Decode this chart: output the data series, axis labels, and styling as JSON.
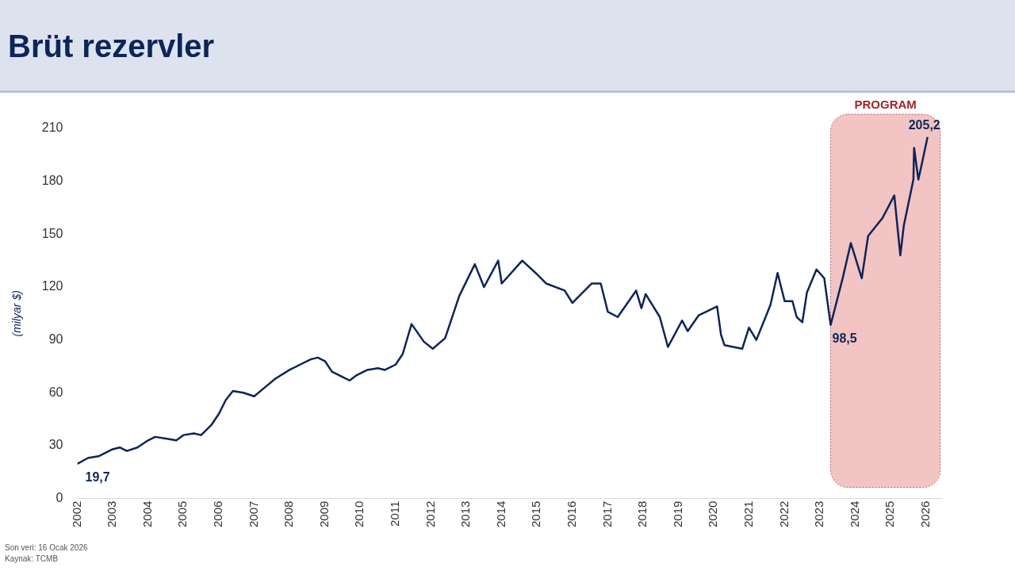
{
  "chart_data": {
    "type": "line",
    "title": "Brüt rezervler",
    "ylabel": "(milyar $)",
    "x": [
      2002.0,
      2002.3,
      2002.6,
      2003.0,
      2003.2,
      2003.4,
      2003.7,
      2004.0,
      2004.2,
      2004.5,
      2004.8,
      2005.0,
      2005.3,
      2005.5,
      2005.8,
      2006.0,
      2006.2,
      2006.4,
      2006.7,
      2007.0,
      2007.3,
      2007.6,
      2008.0,
      2008.3,
      2008.6,
      2008.8,
      2009.0,
      2009.2,
      2009.5,
      2009.7,
      2009.9,
      2010.2,
      2010.5,
      2010.7,
      2011.0,
      2011.2,
      2011.45,
      2011.8,
      2012.05,
      2012.4,
      2012.8,
      2013.24,
      2013.5,
      2013.9,
      2014.0,
      2014.58,
      2014.96,
      2015.26,
      2015.78,
      2016.0,
      2016.54,
      2016.8,
      2017.0,
      2017.28,
      2017.8,
      2017.95,
      2018.07,
      2018.47,
      2018.7,
      2019.1,
      2019.26,
      2019.57,
      2020.09,
      2020.2,
      2020.3,
      2020.8,
      2020.99,
      2021.2,
      2021.6,
      2021.8,
      2022.0,
      2022.22,
      2022.34,
      2022.5,
      2022.63,
      2022.9,
      2023.12,
      2023.3,
      2023.64,
      2023.87,
      2024.18,
      2024.36,
      2024.76,
      2025.1,
      2025.27,
      2025.37,
      2025.64,
      2025.66,
      2025.78,
      2025.89,
      2026.04
    ],
    "series": [
      {
        "color": "#0d2557",
        "values": [
          19.7,
          23,
          24,
          28,
          29,
          27,
          29,
          33,
          35,
          34,
          33,
          36,
          37,
          36,
          42,
          48,
          56,
          61,
          60,
          58,
          63,
          68,
          73,
          76,
          79,
          80,
          78,
          72,
          69,
          67,
          70,
          73,
          74,
          73,
          76,
          82,
          99,
          89,
          85,
          91,
          115,
          133,
          120,
          135,
          122,
          135,
          128,
          122,
          118,
          111,
          122,
          122,
          106,
          103,
          118,
          108,
          116,
          103,
          86,
          101,
          95,
          104,
          109,
          93,
          87,
          85,
          97,
          90,
          110,
          128,
          112,
          112,
          103,
          100,
          117,
          130,
          125,
          98.5,
          125,
          145,
          125,
          149,
          159,
          172,
          138,
          155,
          181,
          199,
          181,
          191,
          205.2
        ]
      }
    ],
    "xlim": [
      2002,
      2026.45
    ],
    "xticks": [
      2002,
      2003,
      2004,
      2005,
      2006,
      2007,
      2008,
      2009,
      2010,
      2011,
      2012,
      2013,
      2014,
      2015,
      2016,
      2017,
      2018,
      2019,
      2020,
      2021,
      2022,
      2023,
      2024,
      2025,
      2026
    ],
    "ylim": [
      0,
      210
    ],
    "yticks": [
      0,
      30,
      60,
      90,
      120,
      150,
      180,
      210
    ],
    "bands": [
      {
        "axis": "x",
        "from": 2023.3,
        "to": 2026.4,
        "label": "PROGRAM",
        "color": "#f2c4c4"
      }
    ],
    "annotations": [
      {
        "text": "19,7",
        "x": 2002.0,
        "y": 19.7
      },
      {
        "text": "98,5",
        "x": 2023.3,
        "y": 98.5
      },
      {
        "text": "205,2",
        "x": 2026.04,
        "y": 205.2
      },
      "Son veri: 16 Ocak 2026",
      "Kaynak: TCMB"
    ],
    "grid": false,
    "legend": false,
    "marker": "none",
    "line_style": "solid"
  }
}
